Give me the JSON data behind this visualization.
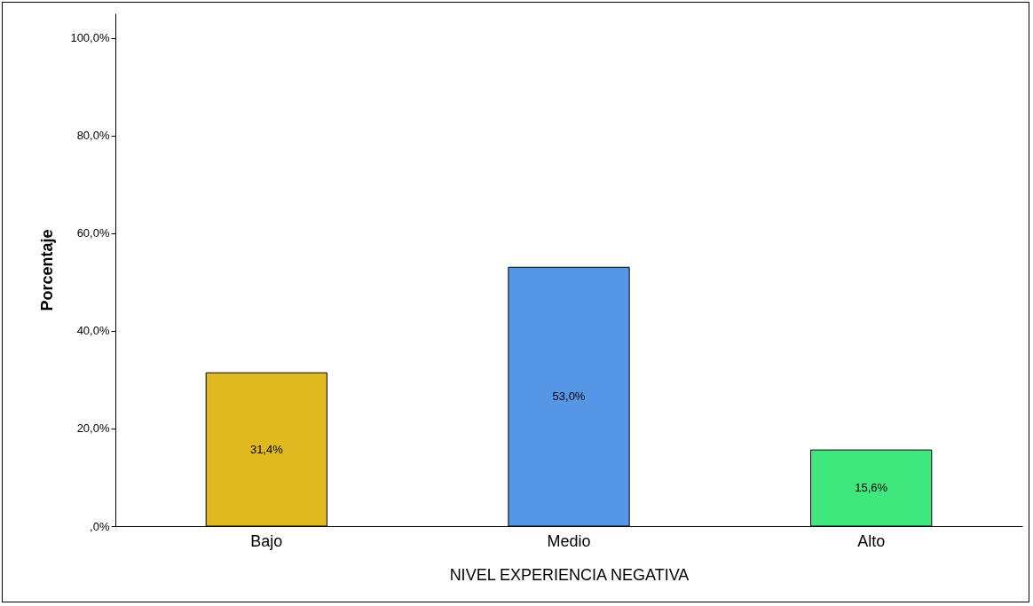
{
  "chart_data": {
    "type": "bar",
    "xlabel": "NIVEL EXPERIENCIA NEGATIVA",
    "ylabel": "Porcentaje",
    "categories": [
      "Bajo",
      "Medio",
      "Alto"
    ],
    "values": [
      31.4,
      53.0,
      15.6
    ],
    "colors": [
      "#dfb91f",
      "#5596e6",
      "#3fe77c"
    ],
    "value_labels": [
      "31,4%",
      "53,0%",
      "15,6%"
    ],
    "ylim": [
      0,
      105
    ],
    "yticks": [
      {
        "value": 0,
        "label": ",0%"
      },
      {
        "value": 20,
        "label": "20,0%"
      },
      {
        "value": 40,
        "label": "40,0%"
      },
      {
        "value": 60,
        "label": "60,0%"
      },
      {
        "value": 80,
        "label": "80,0%"
      },
      {
        "value": 100,
        "label": "100,0%"
      }
    ],
    "grid": false
  }
}
